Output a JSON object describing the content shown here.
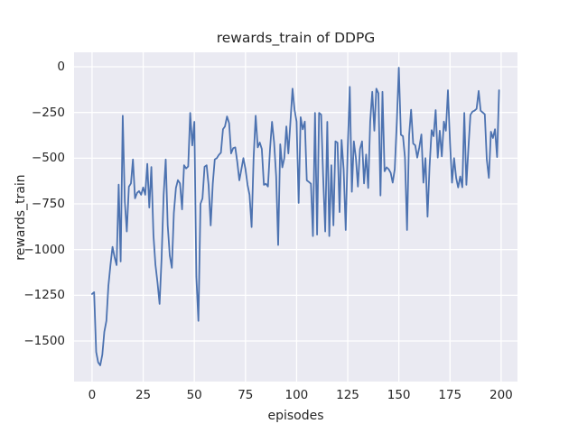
{
  "figure": {
    "title": "rewards_train of DDPG",
    "xlabel": "episodes",
    "ylabel": "rewards_train"
  },
  "colors": {
    "line": "#4c72b0",
    "plot_background": "#eaeaf2",
    "figure_background": "#ffffff",
    "grid": "#ffffff",
    "text": "#262626"
  },
  "chart_data": {
    "type": "line",
    "title": "rewards_train of DDPG",
    "xlabel": "episodes",
    "ylabel": "rewards_train",
    "grid": true,
    "legend": false,
    "x_ticks": [
      0,
      25,
      50,
      75,
      100,
      125,
      150,
      175,
      200
    ],
    "y_ticks": [
      0,
      -250,
      -500,
      -750,
      -1000,
      -1250,
      -1500
    ],
    "xlim": [
      -8.8,
      208
    ],
    "ylim": [
      -1722,
      79
    ],
    "series": [
      {
        "name": "rewards_train",
        "x_start": 0,
        "x_step": 1,
        "values": [
          -1243,
          -1233,
          -1560,
          -1617,
          -1633,
          -1575,
          -1450,
          -1390,
          -1200,
          -1085,
          -985,
          -1040,
          -1085,
          -645,
          -1065,
          -268,
          -737,
          -901,
          -656,
          -638,
          -507,
          -720,
          -690,
          -680,
          -700,
          -660,
          -700,
          -531,
          -770,
          -548,
          -920,
          -1082,
          -1180,
          -1297,
          -1050,
          -700,
          -507,
          -868,
          -1033,
          -1100,
          -800,
          -663,
          -620,
          -638,
          -780,
          -539,
          -556,
          -545,
          -252,
          -430,
          -301,
          -1148,
          -1390,
          -750,
          -720,
          -547,
          -539,
          -650,
          -868,
          -640,
          -507,
          -500,
          -482,
          -470,
          -342,
          -326,
          -272,
          -309,
          -474,
          -445,
          -441,
          -520,
          -621,
          -560,
          -500,
          -560,
          -646,
          -700,
          -877,
          -500,
          -268,
          -441,
          -414,
          -450,
          -646,
          -640,
          -655,
          -450,
          -301,
          -414,
          -600,
          -975,
          -424,
          -550,
          -500,
          -326,
          -474,
          -300,
          -120,
          -235,
          -300,
          -745,
          -276,
          -342,
          -300,
          -621,
          -630,
          -640,
          -926,
          -252,
          -918,
          -252,
          -262,
          -600,
          -901,
          -301,
          -926,
          -539,
          -868,
          -408,
          -415,
          -795,
          -400,
          -560,
          -893,
          -450,
          -110,
          -684,
          -408,
          -500,
          -655,
          -450,
          -408,
          -638,
          -480,
          -663,
          -300,
          -137,
          -350,
          -120,
          -145,
          -704,
          -137,
          -572,
          -550,
          -560,
          -580,
          -634,
          -560,
          -300,
          -5,
          -372,
          -380,
          -497,
          -893,
          -375,
          -235,
          -420,
          -430,
          -497,
          -440,
          -370,
          -634,
          -500,
          -820,
          -550,
          -347,
          -380,
          -237,
          -497,
          -350,
          -490,
          -300,
          -350,
          -128,
          -414,
          -634,
          -500,
          -608,
          -660,
          -600,
          -659,
          -252,
          -646,
          -450,
          -263,
          -245,
          -240,
          -230,
          -132,
          -240,
          -250,
          -260,
          -507,
          -608,
          -355,
          -390,
          -342,
          -494,
          -128
        ]
      }
    ]
  }
}
